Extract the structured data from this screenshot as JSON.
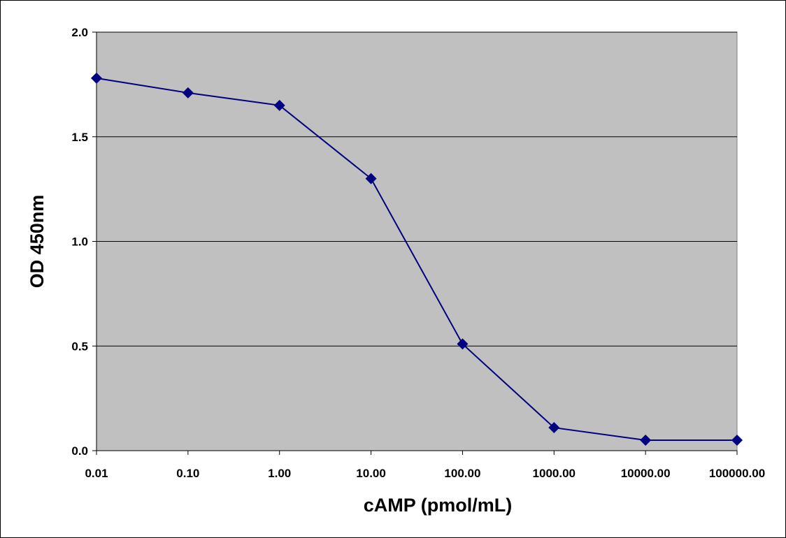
{
  "chart_data": {
    "type": "line",
    "title": "",
    "xlabel": "cAMP (pmol/mL)",
    "ylabel": "OD 450nm",
    "x_scale": "log",
    "x": [
      0.01,
      0.1,
      1,
      10,
      100,
      1000,
      10000,
      100000
    ],
    "x_tick_labels": [
      "0.01",
      "0.10",
      "1.00",
      "10.00",
      "100.00",
      "1000.00",
      "10000.00",
      "100000.00"
    ],
    "y_tick_labels": [
      "0.0",
      "0.5",
      "1.0",
      "1.5",
      "2.0"
    ],
    "y_ticks": [
      0,
      0.5,
      1.0,
      1.5,
      2.0
    ],
    "ylim": [
      0,
      2.0
    ],
    "grid": "horizontal",
    "legend": "none",
    "series": [
      {
        "values": [
          1.78,
          1.71,
          1.65,
          1.3,
          0.51,
          0.11,
          0.05,
          0.05
        ]
      }
    ],
    "colors": {
      "plot_background": "#c0c0c0",
      "line": "#000080",
      "marker": "#000080",
      "gridline": "#000000"
    }
  }
}
